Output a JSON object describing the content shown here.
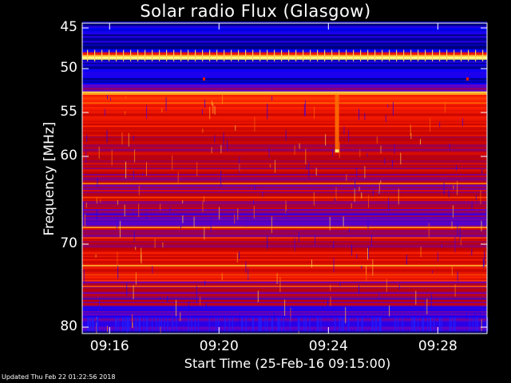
{
  "chart_data": {
    "type": "heatmap",
    "title": "Solar radio Flux (Glasgow)",
    "xlabel": "Start Time (25-Feb-16 09:15:00)",
    "ylabel": "Frequency [MHz]",
    "xticks": [
      "09:16",
      "09:20",
      "09:24",
      "09:28"
    ],
    "yticks": [
      "45",
      "50",
      "55",
      "60",
      "70",
      "80"
    ],
    "ytick_values": [
      45,
      50,
      55,
      60,
      70,
      80
    ],
    "xtick_values_min": [
      16,
      20,
      24,
      28
    ],
    "x_range_min": [
      15.0,
      29.8
    ],
    "y_range_mhz": [
      44.2,
      80.5
    ],
    "colormap": [
      "#00006a",
      "#0000ff",
      "#6a00c0",
      "#c00000",
      "#ff2000",
      "#ff8000",
      "#ffff80"
    ],
    "bands": [
      {
        "from": 44.2,
        "to": 44.8,
        "level": 0.05
      },
      {
        "from": 44.8,
        "to": 48.0,
        "level": 0.12
      },
      {
        "from": 48.0,
        "to": 48.3,
        "level": 0.55
      },
      {
        "from": 48.3,
        "to": 48.9,
        "level": 0.98
      },
      {
        "from": 48.9,
        "to": 51.8,
        "level": 0.14
      },
      {
        "from": 51.8,
        "to": 52.6,
        "level": 0.35
      },
      {
        "from": 52.6,
        "to": 53.0,
        "level": 0.85
      },
      {
        "from": 53.0,
        "to": 54.0,
        "level": 0.7
      },
      {
        "from": 54.0,
        "to": 57.0,
        "level": 0.62
      },
      {
        "from": 57.0,
        "to": 62.0,
        "level": 0.5
      },
      {
        "from": 62.0,
        "to": 66.0,
        "level": 0.46
      },
      {
        "from": 66.0,
        "to": 68.0,
        "level": 0.33
      },
      {
        "from": 68.0,
        "to": 71.0,
        "level": 0.48
      },
      {
        "from": 71.0,
        "to": 74.5,
        "level": 0.58
      },
      {
        "from": 74.5,
        "to": 77.5,
        "level": 0.44
      },
      {
        "from": 77.5,
        "to": 80.5,
        "level": 0.3
      }
    ],
    "burst": {
      "time_min": 24.3,
      "freq_from": 53.0,
      "freq_to": 59.5,
      "level": 0.8
    }
  },
  "footer": "Updated Thu Feb 22 01:22:56 2018"
}
